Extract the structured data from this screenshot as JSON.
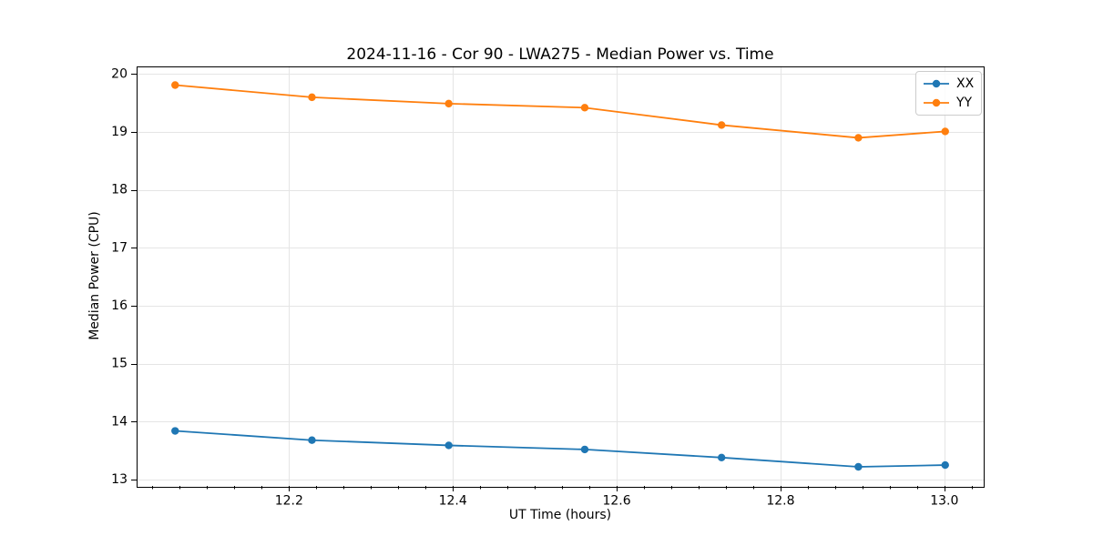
{
  "chart_data": {
    "type": "line",
    "title": "2024-11-16 - Cor 90 - LWA275 - Median Power vs. Time",
    "xlabel": "UT Time (hours)",
    "ylabel": "Median Power (CPU)",
    "xlim": [
      12.014,
      13.048
    ],
    "ylim": [
      12.89,
      20.14
    ],
    "xticks": [
      12.2,
      12.4,
      12.6,
      12.8,
      13.0
    ],
    "xtick_labels": [
      "12.2",
      "12.4",
      "12.6",
      "12.8",
      "13.0"
    ],
    "yticks": [
      13,
      14,
      15,
      16,
      17,
      18,
      19,
      20
    ],
    "ytick_labels": [
      "13",
      "14",
      "15",
      "16",
      "17",
      "18",
      "19",
      "20"
    ],
    "x_minor_divisions": 6,
    "grid": true,
    "grid_color": "#e5e5e5",
    "legend_position": "upper right",
    "x": [
      12.061,
      12.228,
      12.395,
      12.561,
      12.728,
      12.895,
      13.001
    ],
    "series": [
      {
        "name": "XX",
        "color": "#1f77b4",
        "values": [
          13.84,
          13.68,
          13.59,
          13.52,
          13.38,
          13.22,
          13.25
        ]
      },
      {
        "name": "YY",
        "color": "#ff7f0e",
        "values": [
          19.81,
          19.6,
          19.49,
          19.42,
          19.12,
          18.9,
          19.01
        ]
      }
    ]
  }
}
